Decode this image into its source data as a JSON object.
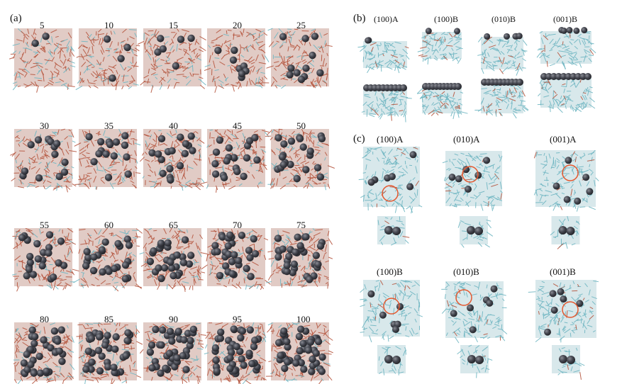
{
  "figure": {
    "panel_a": {
      "letter": "(a)",
      "steps": [
        "5",
        "10",
        "15",
        "20",
        "25",
        "30",
        "35",
        "40",
        "45",
        "50",
        "55",
        "60",
        "65",
        "70",
        "75",
        "80",
        "85",
        "90",
        "95",
        "100"
      ]
    },
    "panel_b": {
      "letter": "(b)",
      "labels": [
        "(100)A",
        "(100)B",
        "(010)B",
        "(001)B"
      ]
    },
    "panel_c": {
      "letter": "(c)",
      "labels": [
        "(100)A",
        "(010)A",
        "(001)A",
        "(100)B",
        "(010)B",
        "(001)B"
      ]
    },
    "colors": {
      "molecule_red": "#b5553e",
      "molecule_teal": "#6fb6c2",
      "sphere_dark": "#44464f",
      "circle_red": "#e4582f"
    }
  }
}
